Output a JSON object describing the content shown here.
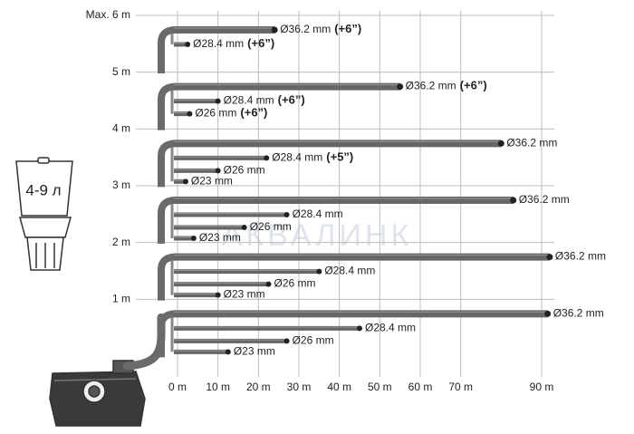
{
  "chart_data": {
    "type": "pipe-lift",
    "xlim": [
      0,
      90
    ],
    "ylim": [
      0,
      6
    ],
    "xticks": [
      {
        "value": 0,
        "label": "0 m"
      },
      {
        "value": 10,
        "label": "10 m"
      },
      {
        "value": 20,
        "label": "20 m"
      },
      {
        "value": 30,
        "label": "30 m"
      },
      {
        "value": 40,
        "label": "40 m"
      },
      {
        "value": 50,
        "label": "50 m"
      },
      {
        "value": 60,
        "label": "60 m"
      },
      {
        "value": 70,
        "label": "70 m"
      },
      {
        "value": 90,
        "label": "90 m"
      }
    ],
    "yticks": [
      {
        "value": 6,
        "label": "Max. 6 m"
      },
      {
        "value": 5,
        "label": "5 m"
      },
      {
        "value": 4,
        "label": "4 m"
      },
      {
        "value": 3,
        "label": "3 m"
      },
      {
        "value": 2,
        "label": "2 m"
      },
      {
        "value": 1,
        "label": "1 m"
      }
    ],
    "levels": [
      {
        "height": 6,
        "pipes": [
          {
            "name": "Ø36.2 mm",
            "extra": "(+6”)",
            "length": 24
          },
          {
            "name": "Ø28.4 mm",
            "extra": "(+6”)",
            "length": 2.5
          }
        ]
      },
      {
        "height": 5,
        "pipes": [
          {
            "name": "Ø36.2 mm",
            "extra": "(+6”)",
            "length": 55
          },
          {
            "name": "Ø28.4 mm",
            "extra": "(+6”)",
            "length": 10
          },
          {
            "name": "Ø26 mm",
            "extra": "(+6”)",
            "length": 3
          }
        ]
      },
      {
        "height": 4,
        "pipes": [
          {
            "name": "Ø36.2 mm",
            "length": 80
          },
          {
            "name": "Ø28.4 mm",
            "extra": "(+5”)",
            "length": 22
          },
          {
            "name": "Ø26 mm",
            "length": 10
          },
          {
            "name": "Ø23 mm",
            "length": 2
          }
        ]
      },
      {
        "height": 3,
        "pipes": [
          {
            "name": "Ø36.2 mm",
            "length": 83
          },
          {
            "name": "Ø28.4 mm",
            "length": 27
          },
          {
            "name": "Ø26 mm",
            "length": 16.5
          },
          {
            "name": "Ø23 mm",
            "length": 4
          }
        ]
      },
      {
        "height": 2,
        "pipes": [
          {
            "name": "Ø36.2 mm",
            "length": 92
          },
          {
            "name": "Ø28.4 mm",
            "length": 35
          },
          {
            "name": "Ø26 mm",
            "length": 22.5
          },
          {
            "name": "Ø23 mm",
            "length": 10
          }
        ]
      },
      {
        "height": 1,
        "pipes": [
          {
            "name": "Ø36.2 mm",
            "length": 91.5
          },
          {
            "name": "Ø28.4 mm",
            "length": 45
          },
          {
            "name": "Ø26 mm",
            "length": 27
          },
          {
            "name": "Ø23 mm",
            "length": 12.5
          }
        ]
      }
    ],
    "tank_label": "4-9 л",
    "watermark": "АКВАЛИНК"
  }
}
